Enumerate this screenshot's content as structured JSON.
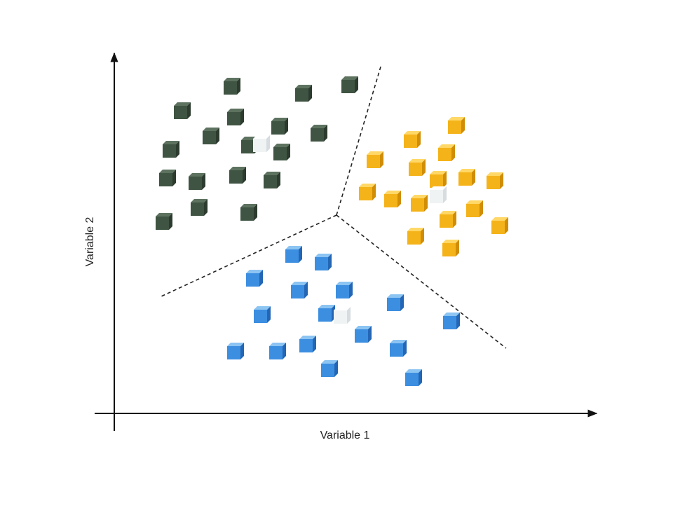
{
  "axes": {
    "x_label": "Variable 1",
    "y_label": "Variable 2"
  }
}
